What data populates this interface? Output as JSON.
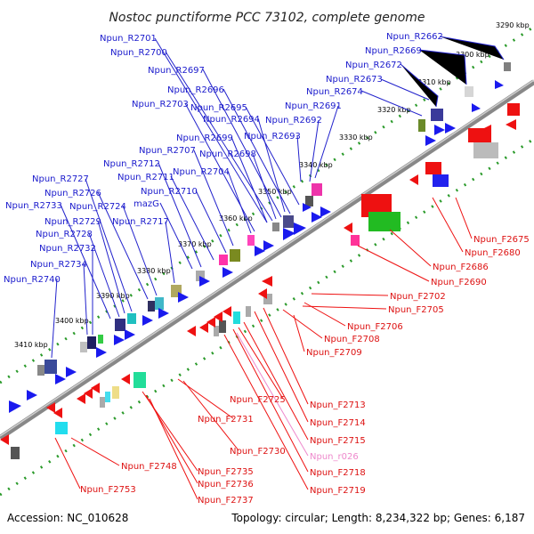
{
  "title": "Nostoc punctiforme PCC 73102, complete genome",
  "footer": {
    "accession": "Accession: NC_010628",
    "summary": "Topology: circular; Length: 8,234,322 bp; Genes: 6,187"
  },
  "colors": {
    "backbone": "#888888",
    "top_strand_labels": "#1a1acc",
    "bottom_strand_labels": "#dd1111",
    "rna_label": "#ee88cc",
    "tick_green": "#2a9a2a"
  },
  "kbp_ticks": [
    "3290 kbp",
    "3300 kbp",
    "3310 kbp",
    "3320 kbp",
    "3330 kbp",
    "3340 kbp",
    "3350 kbp",
    "3360 kbp",
    "3370 kbp",
    "3380 kbp",
    "3390 kbp",
    "3400 kbp",
    "3410 kbp"
  ],
  "top_labels": [
    "Npun_R2662",
    "Npun_R2669",
    "Npun_R2672",
    "Npun_R2673",
    "Npun_R2674",
    "Npun_R2691",
    "Npun_R2692",
    "Npun_R2693",
    "Npun_R2694",
    "Npun_R2695",
    "Npun_R2696",
    "Npun_R2697",
    "Npun_R2698",
    "Npun_R2699",
    "Npun_R2700",
    "Npun_R2701",
    "Npun_R2703",
    "Npun_R2704",
    "Npun_R2707",
    "Npun_R2710",
    "Npun_R2711",
    "Npun_R2712",
    "mazG",
    "Npun_R2717",
    "Npun_R2724",
    "Npun_R2726",
    "Npun_R2727",
    "Npun_R2728",
    "Npun_R2729",
    "Npun_R2732",
    "Npun_R2733",
    "Npun_R2734",
    "Npun_R2740"
  ],
  "bottom_labels": [
    "Npun_F2675",
    "Npun_F2680",
    "Npun_F2686",
    "Npun_F2690",
    "Npun_F2702",
    "Npun_F2705",
    "Npun_F2706",
    "Npun_F2708",
    "Npun_F2709",
    "Npun_F2713",
    "Npun_F2714",
    "Npun_F2715",
    "Npun_r026",
    "Npun_F2718",
    "Npun_F2719",
    "Npun_F2725",
    "Npun_F2731",
    "Npun_F2730",
    "Npun_F2735",
    "Npun_F2736",
    "Npun_F2737",
    "Npun_F2748",
    "Npun_F2753"
  ]
}
